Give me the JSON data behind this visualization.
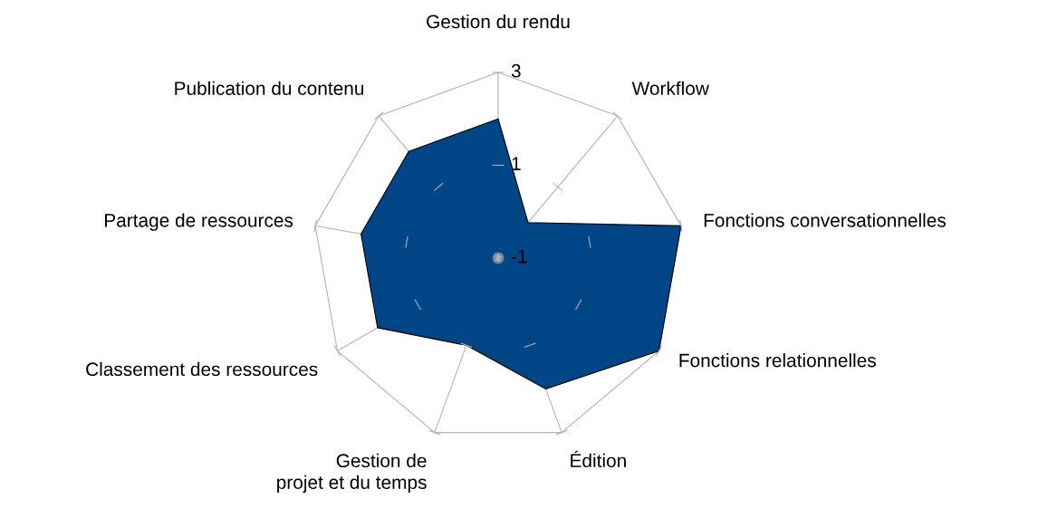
{
  "chart_data": {
    "type": "radar",
    "categories": [
      "Gestion du rendu",
      "Workflow",
      "Fonctions conversationnelles",
      "Fonctions relationnelles",
      "Édition",
      "Gestion de\nprojet et du temps",
      "Classement des ressources",
      "Partage de ressources",
      "Publication du contenu"
    ],
    "series": [
      {
        "color": "#004586",
        "values": [
          2,
          0,
          3,
          3,
          2,
          1,
          2,
          2,
          2
        ]
      }
    ],
    "ylim": [
      -1,
      3
    ],
    "yticks": [
      -1,
      1,
      3
    ],
    "grid": true,
    "legend": false,
    "marker": "none"
  }
}
